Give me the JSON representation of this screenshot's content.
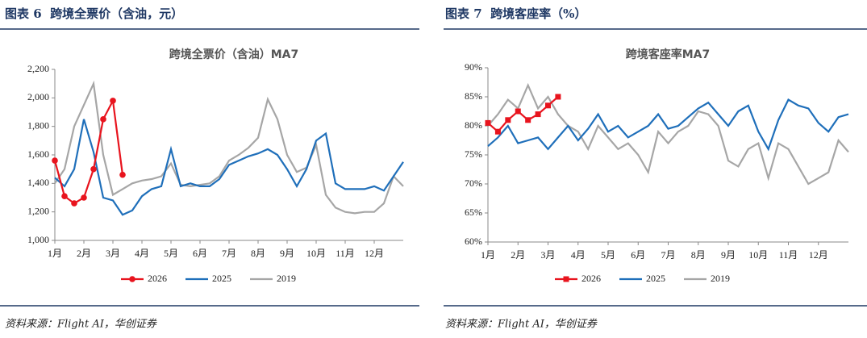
{
  "panels": [
    {
      "caption": "图表 6  跨境全票价（含油，元）",
      "source": "资料来源：Flight AI，华创证券"
    },
    {
      "caption": "图表 7  跨境客座率（%）",
      "source": "资料来源：Flight AI，华创证券"
    }
  ],
  "chart_data": [
    {
      "type": "line",
      "title": "跨境全票价（含油）MA7",
      "categories": [
        "1月",
        null,
        null,
        "2月",
        null,
        null,
        "3月",
        null,
        null,
        "4月",
        null,
        null,
        "5月",
        null,
        null,
        "6月",
        null,
        null,
        "7月",
        null,
        null,
        "8月",
        null,
        null,
        "9月",
        null,
        null,
        "10月",
        null,
        null,
        "11月",
        null,
        null,
        "12月",
        null,
        null,
        null
      ],
      "series": [
        {
          "name": "2026",
          "color": "#e8141e",
          "marker": "circle",
          "values": [
            1560,
            1310,
            1260,
            1300,
            1500,
            1850,
            1980,
            1460,
            null,
            null,
            null,
            null,
            null,
            null,
            null,
            null,
            null,
            null,
            null,
            null,
            null,
            null,
            null,
            null,
            null,
            null,
            null,
            null,
            null,
            null,
            null,
            null,
            null,
            null,
            null,
            null,
            null
          ]
        },
        {
          "name": "2025",
          "color": "#1f6fba",
          "values": [
            1440,
            1380,
            1500,
            1850,
            1620,
            1300,
            1280,
            1180,
            1210,
            1310,
            1360,
            1380,
            1640,
            1380,
            1400,
            1380,
            1380,
            1430,
            1530,
            1560,
            1590,
            1610,
            1640,
            1600,
            1500,
            1380,
            1500,
            1700,
            1750,
            1400,
            1360,
            1360,
            1360,
            1380,
            1350,
            1450,
            1550
          ]
        },
        {
          "name": "2019",
          "color": "#a6a6a6",
          "values": [
            1400,
            1500,
            1800,
            1950,
            2100,
            1600,
            1320,
            1360,
            1400,
            1420,
            1430,
            1450,
            1540,
            1390,
            1380,
            1390,
            1400,
            1450,
            1560,
            1600,
            1650,
            1720,
            1990,
            1850,
            1600,
            1480,
            1510,
            1670,
            1320,
            1230,
            1200,
            1190,
            1200,
            1200,
            1260,
            1450,
            1380
          ]
        }
      ],
      "ylim": [
        1000,
        2200
      ],
      "yticks": [
        {
          "value": 1000,
          "label": "1,000"
        },
        {
          "value": 1200,
          "label": "1,200"
        },
        {
          "value": 1400,
          "label": "1,400"
        },
        {
          "value": 1600,
          "label": "1,600"
        },
        {
          "value": 1800,
          "label": "1,800"
        },
        {
          "value": 2000,
          "label": "2,000"
        },
        {
          "value": 2200,
          "label": "2,200"
        }
      ],
      "legend": "bottom"
    },
    {
      "type": "line",
      "title": "跨境客座率MA7",
      "categories": [
        "1月",
        null,
        null,
        "2月",
        null,
        null,
        "3月",
        null,
        null,
        "4月",
        null,
        null,
        "5月",
        null,
        null,
        "6月",
        null,
        null,
        "7月",
        null,
        null,
        "8月",
        null,
        null,
        "9月",
        null,
        null,
        "10月",
        null,
        null,
        "11月",
        null,
        null,
        "12月",
        null,
        null,
        null
      ],
      "series": [
        {
          "name": "2026",
          "color": "#e8141e",
          "marker": "square",
          "values": [
            80.5,
            79,
            81,
            82.5,
            81,
            82,
            83.5,
            85,
            null,
            null,
            null,
            null,
            null,
            null,
            null,
            null,
            null,
            null,
            null,
            null,
            null,
            null,
            null,
            null,
            null,
            null,
            null,
            null,
            null,
            null,
            null,
            null,
            null,
            null,
            null,
            null,
            null
          ]
        },
        {
          "name": "2025",
          "color": "#1f6fba",
          "values": [
            76.5,
            78,
            80,
            77,
            77.5,
            78,
            76,
            78,
            80,
            77.5,
            79.5,
            82,
            79,
            80,
            78,
            79,
            80,
            82,
            79.5,
            80,
            81.5,
            83,
            84,
            82,
            80,
            82.5,
            83.5,
            79,
            76,
            81,
            84.5,
            83.5,
            83,
            80.5,
            79,
            81.5,
            82
          ]
        },
        {
          "name": "2019",
          "color": "#a6a6a6",
          "values": [
            80,
            82,
            84.5,
            83,
            87,
            83,
            85,
            82,
            80,
            79,
            76,
            80,
            78,
            76,
            77,
            75,
            72,
            79,
            77,
            79,
            80,
            82.5,
            82,
            80,
            74,
            73,
            76,
            77,
            71,
            77,
            76,
            73,
            70,
            71,
            72,
            77.5,
            75.5
          ]
        }
      ],
      "ylim": [
        60,
        90
      ],
      "yticks": [
        {
          "value": 60,
          "label": "60%"
        },
        {
          "value": 65,
          "label": "65%"
        },
        {
          "value": 70,
          "label": "70%"
        },
        {
          "value": 75,
          "label": "75%"
        },
        {
          "value": 80,
          "label": "80%"
        },
        {
          "value": 85,
          "label": "85%"
        },
        {
          "value": 90,
          "label": "90%"
        }
      ],
      "legend": "bottom"
    }
  ]
}
